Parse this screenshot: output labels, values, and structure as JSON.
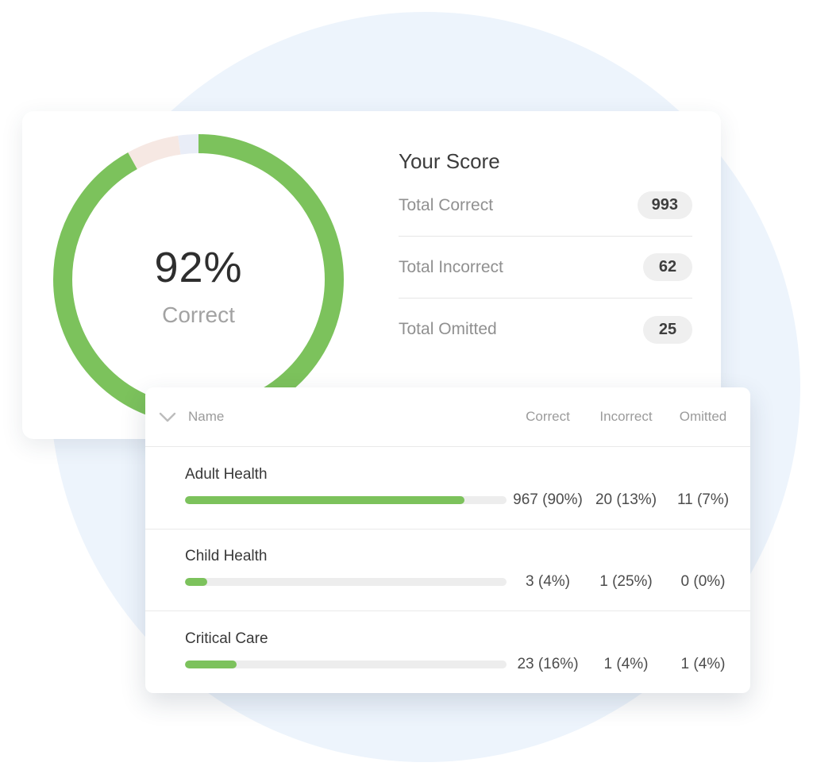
{
  "colors": {
    "accent_green": "#7cc25c",
    "incorrect_pink": "#f6e8e3",
    "omitted_lavender": "#e9edf7",
    "background_circle": "#edf4fc",
    "badge_background": "#efefef"
  },
  "score_card": {
    "title": "Your Score",
    "donut": {
      "center_value": "92%",
      "center_label": "Correct",
      "segments": [
        {
          "name": "correct",
          "pct": 91.9,
          "color": "#7cc25c"
        },
        {
          "name": "incorrect",
          "pct": 5.8,
          "color": "#f6e8e3"
        },
        {
          "name": "omitted",
          "pct": 2.3,
          "color": "#e9edf7"
        }
      ]
    },
    "stats": [
      {
        "label": "Total Correct",
        "value": "993"
      },
      {
        "label": "Total Incorrect",
        "value": "62"
      },
      {
        "label": "Total Omitted",
        "value": "25"
      }
    ]
  },
  "table_card": {
    "columns": [
      "Name",
      "Correct",
      "Incorrect",
      "Omitted"
    ],
    "rows": [
      {
        "name": "Adult Health",
        "bar_pct": 87,
        "correct": "967 (90%)",
        "incorrect": "20 (13%)",
        "omitted": "11 (7%)"
      },
      {
        "name": "Child Health",
        "bar_pct": 7,
        "correct": "3 (4%)",
        "incorrect": "1 (25%)",
        "omitted": "0 (0%)"
      },
      {
        "name": "Critical Care",
        "bar_pct": 16,
        "correct": "23 (16%)",
        "incorrect": "1 (4%)",
        "omitted": "1 (4%)"
      }
    ]
  }
}
